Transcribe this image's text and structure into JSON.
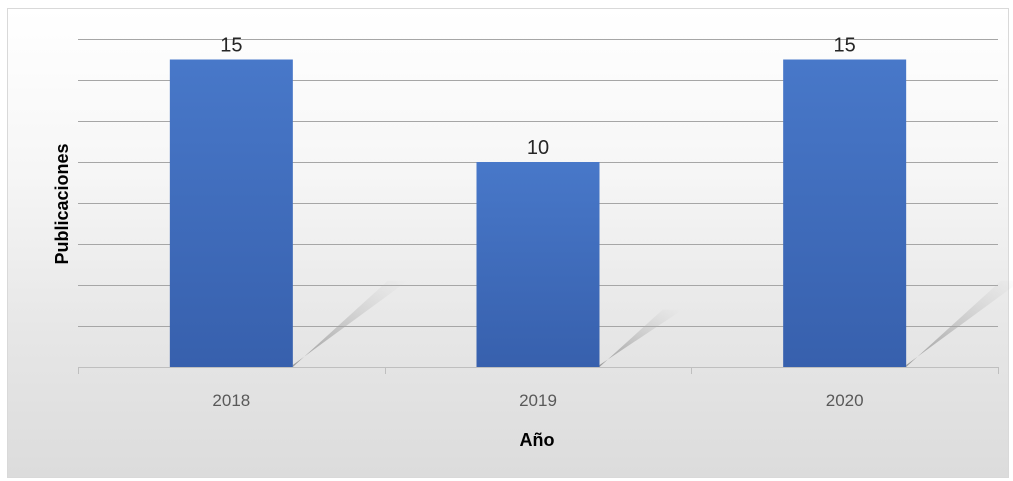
{
  "chart_data": {
    "type": "bar",
    "categories": [
      "2018",
      "2019",
      "2020"
    ],
    "values": [
      15,
      10,
      15
    ],
    "title": "",
    "xlabel": "Año",
    "ylabel": "Publicaciones",
    "ylim": [
      0,
      16
    ],
    "grid": true,
    "legend": "none",
    "colors": {
      "bar": "#4472c4",
      "bar_dark": "#3a5fa8",
      "grid": "#a6a6a6",
      "axis": "#bfbfbf"
    }
  }
}
